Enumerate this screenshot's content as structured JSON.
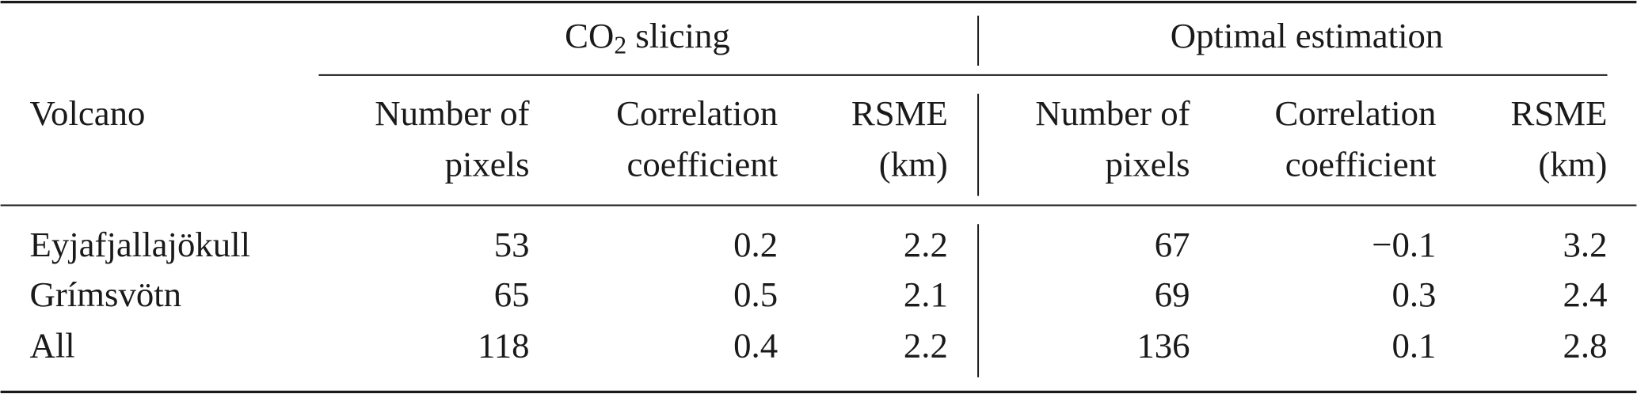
{
  "table": {
    "group_headers": [
      {
        "base": "CO",
        "sub": "2",
        "rest": " slicing"
      },
      {
        "base": "Optimal estimation"
      }
    ],
    "row_header": "Volcano",
    "column_headers": [
      [
        "Number of",
        "pixels"
      ],
      [
        "Correlation",
        "coefficient"
      ],
      [
        "RSME",
        "(km)"
      ],
      [
        "Number of",
        "pixels"
      ],
      [
        "Correlation",
        "coefficient"
      ],
      [
        "RSME",
        "(km)"
      ]
    ],
    "rows": [
      [
        "Eyjafjallajökull",
        "53",
        "0.2",
        "2.2",
        "67",
        "−0.1",
        "3.2"
      ],
      [
        "Grímsvötn",
        "65",
        "0.5",
        "2.1",
        "69",
        "0.3",
        "2.4"
      ],
      [
        "All",
        "118",
        "0.4",
        "2.2",
        "136",
        "0.1",
        "2.8"
      ]
    ]
  }
}
